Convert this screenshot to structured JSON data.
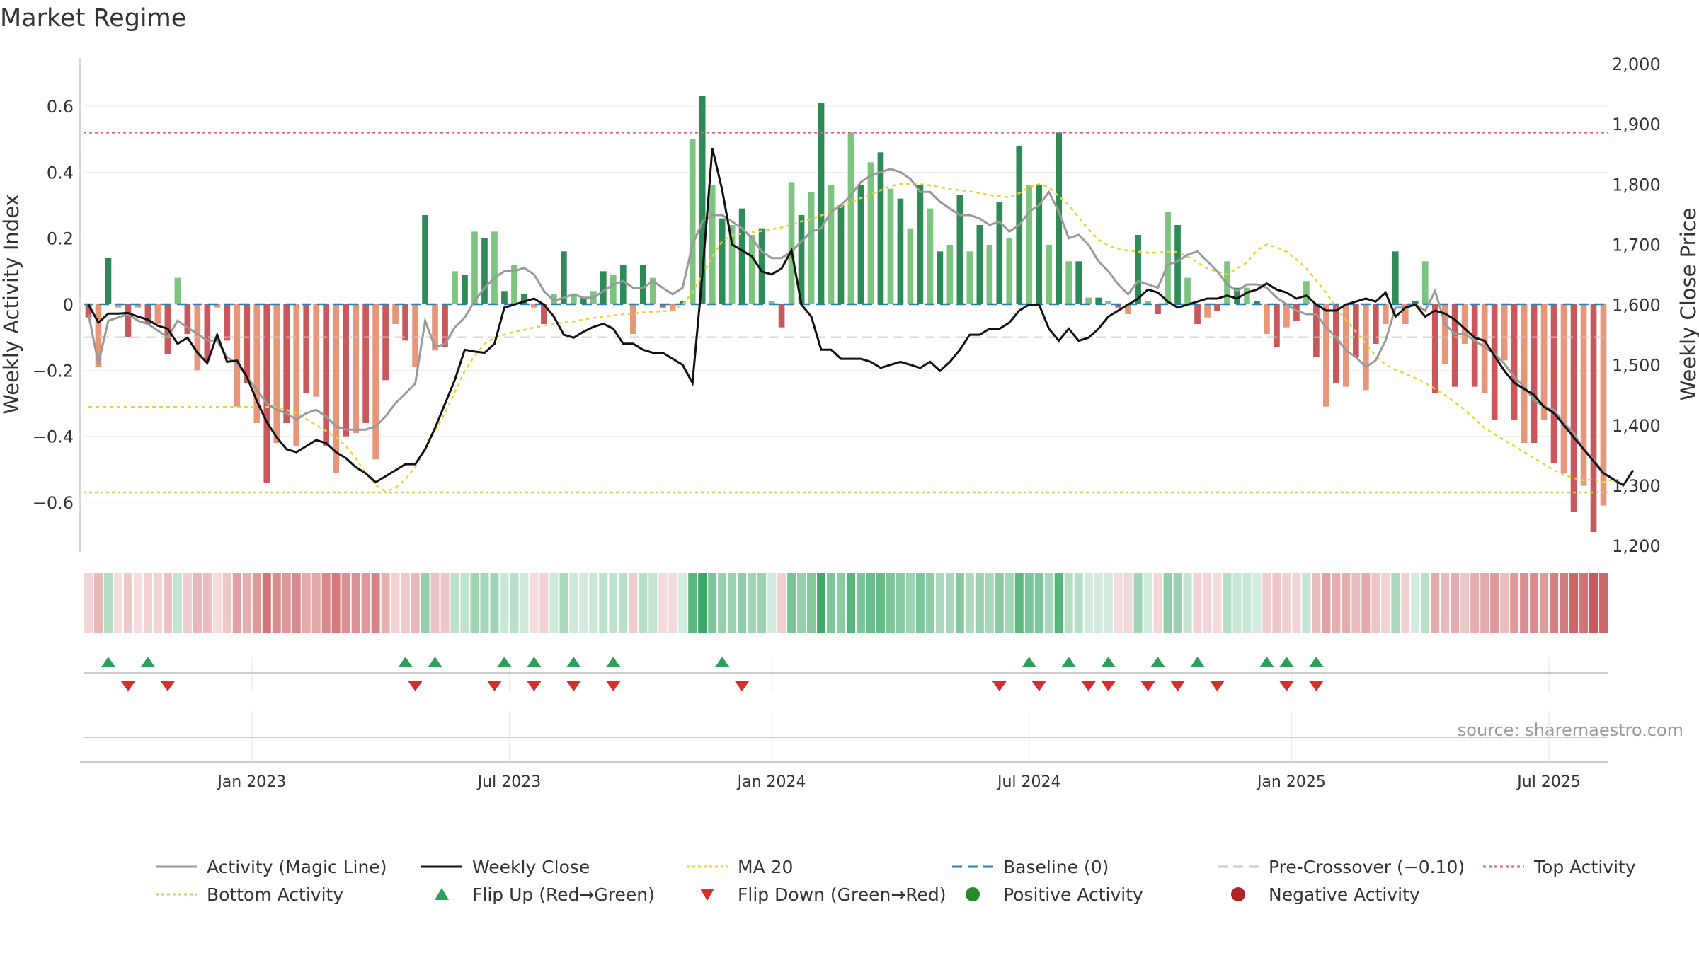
{
  "chart_data": {
    "type": "bar",
    "title": "Market Regime",
    "source": "source: sharemaestro.com",
    "ylabel_left": "Weekly Activity Index",
    "ylabel_right": "Weekly Close Price",
    "y_left_range": [
      -0.75,
      0.75
    ],
    "y_right_range": [
      1200,
      2000
    ],
    "y_left_ticks": [
      "0.6",
      "0.4",
      "0.2",
      "0",
      "−0.2",
      "−0.4",
      "−0.6"
    ],
    "y_left_tick_values": [
      0.6,
      0.4,
      0.2,
      0,
      -0.2,
      -0.4,
      -0.6
    ],
    "y_right_ticks": [
      "2,000",
      "1,900",
      "1,800",
      "1,700",
      "1,600",
      "1,500",
      "1,400",
      "1,300",
      "1,200"
    ],
    "y_right_tick_values": [
      2000,
      1900,
      1800,
      1700,
      1600,
      1500,
      1400,
      1300,
      1200
    ],
    "x_ticks": [
      "Jan 2023",
      "Jul 2023",
      "Jan 2024",
      "Jul 2024",
      "Jan 2025",
      "Jul 2025"
    ],
    "x_tick_weeks": [
      16.5,
      42.5,
      69,
      95,
      121.5,
      147.5
    ],
    "reference_lines": {
      "baseline": 0,
      "pre_crossover": -0.1,
      "top_activity": 0.52,
      "bottom_activity": -0.57
    },
    "colors": {
      "strong_green": "#2e8b57",
      "light_green": "#7cc47f",
      "strong_red": "#c9585c",
      "light_red": "#e8967a",
      "magic_line": "#999999",
      "close": "#111111",
      "ma20": "#e8d33a",
      "baseline": "#2f7fb0",
      "pre_crossover": "#c8c8c8",
      "top": "#e0607e",
      "bottom": "#b5d96a",
      "flip_up": "#2ca05a",
      "flip_down": "#d62d2d"
    },
    "activity": [
      -0.04,
      -0.19,
      0.14,
      -0.01,
      -0.1,
      -0.01,
      -0.06,
      -0.06,
      -0.15,
      0.08,
      -0.09,
      -0.2,
      -0.17,
      -0.01,
      -0.11,
      -0.31,
      -0.24,
      -0.36,
      -0.54,
      -0.42,
      -0.36,
      -0.43,
      -0.27,
      -0.28,
      -0.43,
      -0.51,
      -0.4,
      -0.39,
      -0.36,
      -0.47,
      -0.23,
      -0.06,
      -0.11,
      -0.19,
      0.27,
      -0.14,
      -0.13,
      0.1,
      0.09,
      0.22,
      0.2,
      0.22,
      0.04,
      0.12,
      0.03,
      -0.01,
      -0.06,
      0.03,
      0.16,
      0.03,
      0.02,
      0.04,
      0.1,
      0.09,
      0.12,
      -0.09,
      0.12,
      0.08,
      -0.01,
      -0.02,
      0.01,
      0.5,
      0.63,
      0.36,
      0.26,
      0.24,
      0.29,
      0.21,
      0.23,
      0.01,
      -0.07,
      0.37,
      0.27,
      0.34,
      0.61,
      0.36,
      0.3,
      0.52,
      0.36,
      0.43,
      0.46,
      0.35,
      0.32,
      0.23,
      0.36,
      0.29,
      0.16,
      0.18,
      0.33,
      0.16,
      0.24,
      0.18,
      0.31,
      0.2,
      0.48,
      0.36,
      0.36,
      0.18,
      0.52,
      0.13,
      0.13,
      0.02,
      0.02,
      0.01,
      -0.01,
      -0.03,
      0.21,
      0.01,
      -0.03,
      0.28,
      0.24,
      0.08,
      -0.06,
      -0.04,
      -0.02,
      0.13,
      0.05,
      0.05,
      0.01,
      -0.09,
      -0.13,
      -0.07,
      -0.05,
      0.07,
      -0.16,
      -0.31,
      -0.24,
      -0.25,
      -0.16,
      -0.26,
      -0.12,
      -0.06,
      0.16,
      -0.06,
      0.01,
      0.13,
      -0.27,
      -0.18,
      -0.25,
      -0.12,
      -0.25,
      -0.27,
      -0.35,
      -0.17,
      -0.35,
      -0.42,
      -0.42,
      -0.35,
      -0.48,
      -0.51,
      -0.63,
      -0.55,
      -0.69,
      -0.61
    ],
    "magic_line": [
      -0.03,
      -0.18,
      -0.05,
      -0.04,
      -0.03,
      -0.05,
      -0.06,
      -0.08,
      -0.1,
      -0.05,
      -0.07,
      -0.09,
      -0.11,
      -0.11,
      -0.16,
      -0.18,
      -0.22,
      -0.26,
      -0.3,
      -0.32,
      -0.33,
      -0.35,
      -0.33,
      -0.32,
      -0.34,
      -0.37,
      -0.38,
      -0.38,
      -0.38,
      -0.37,
      -0.34,
      -0.3,
      -0.27,
      -0.24,
      -0.05,
      -0.13,
      -0.12,
      -0.07,
      -0.04,
      0.01,
      0.05,
      0.08,
      0.1,
      0.1,
      0.11,
      0.09,
      0.04,
      0.01,
      0.02,
      0.03,
      0.02,
      0.02,
      0.04,
      0.06,
      0.07,
      0.05,
      0.05,
      0.07,
      0.05,
      0.03,
      0.05,
      0.18,
      0.25,
      0.27,
      0.27,
      0.25,
      0.23,
      0.2,
      0.16,
      0.14,
      0.14,
      0.16,
      0.19,
      0.22,
      0.23,
      0.28,
      0.3,
      0.33,
      0.37,
      0.39,
      0.4,
      0.41,
      0.4,
      0.38,
      0.34,
      0.34,
      0.31,
      0.29,
      0.27,
      0.27,
      0.26,
      0.24,
      0.25,
      0.22,
      0.24,
      0.28,
      0.3,
      0.34,
      0.28,
      0.2,
      0.21,
      0.18,
      0.13,
      0.1,
      0.06,
      0.03,
      0.07,
      0.06,
      0.05,
      0.12,
      0.13,
      0.15,
      0.16,
      0.13,
      0.1,
      0.06,
      0.04,
      0.06,
      0.06,
      0.05,
      0.02,
      0.0,
      -0.02,
      -0.03,
      -0.03,
      -0.07,
      -0.1,
      -0.14,
      -0.16,
      -0.19,
      -0.17,
      -0.11,
      -0.01,
      -0.01,
      0.0,
      -0.02,
      0.04,
      -0.06,
      -0.09,
      -0.09,
      -0.11,
      -0.13,
      -0.15,
      -0.18,
      -0.22,
      -0.25,
      -0.29,
      -0.31,
      -0.32,
      -0.36,
      -0.39,
      -0.44,
      -0.47,
      -0.51,
      -0.53
    ],
    "close": [
      1600,
      1570,
      1585,
      1585,
      1586,
      1580,
      1575,
      1565,
      1560,
      1535,
      1545,
      1520,
      1503,
      1550,
      1505,
      1507,
      1480,
      1440,
      1405,
      1380,
      1360,
      1355,
      1365,
      1375,
      1370,
      1355,
      1345,
      1330,
      1320,
      1305,
      1315,
      1325,
      1335,
      1335,
      1360,
      1395,
      1435,
      1475,
      1525,
      1522,
      1520,
      1535,
      1595,
      1600,
      1605,
      1610,
      1600,
      1580,
      1550,
      1545,
      1555,
      1563,
      1568,
      1560,
      1535,
      1535,
      1525,
      1520,
      1520,
      1510,
      1500,
      1470,
      1650,
      1860,
      1790,
      1700,
      1690,
      1680,
      1655,
      1650,
      1660,
      1690,
      1600,
      1580,
      1525,
      1525,
      1510,
      1510,
      1510,
      1505,
      1495,
      1500,
      1505,
      1500,
      1495,
      1505,
      1490,
      1505,
      1525,
      1550,
      1550,
      1560,
      1560,
      1570,
      1590,
      1600,
      1600,
      1560,
      1540,
      1560,
      1540,
      1545,
      1560,
      1580,
      1590,
      1600,
      1610,
      1625,
      1620,
      1605,
      1595,
      1600,
      1605,
      1610,
      1610,
      1615,
      1610,
      1620,
      1625,
      1635,
      1625,
      1620,
      1610,
      1615,
      1600,
      1590,
      1590,
      1600,
      1605,
      1610,
      1605,
      1620,
      1580,
      1595,
      1600,
      1580,
      1590,
      1585,
      1575,
      1560,
      1545,
      1540,
      1515,
      1490,
      1470,
      1460,
      1450,
      1430,
      1420,
      1400,
      1380,
      1360,
      1340,
      1320,
      1310,
      1300,
      1325
    ],
    "ma20": [
      1430,
      1430,
      1430,
      1430,
      1430,
      1430,
      1430,
      1430,
      1430,
      1430,
      1430,
      1430,
      1430,
      1430,
      1430,
      1430,
      1430,
      1430,
      1430,
      1430,
      1425,
      1420,
      1410,
      1400,
      1390,
      1380,
      1365,
      1345,
      1320,
      1300,
      1290,
      1295,
      1310,
      1330,
      1360,
      1390,
      1420,
      1455,
      1490,
      1515,
      1535,
      1545,
      1550,
      1555,
      1558,
      1562,
      1565,
      1568,
      1570,
      1572,
      1575,
      1578,
      1580,
      1582,
      1584,
      1585,
      1587,
      1588,
      1589,
      1590,
      1600,
      1620,
      1650,
      1680,
      1705,
      1715,
      1718,
      1720,
      1722,
      1725,
      1728,
      1733,
      1738,
      1742,
      1748,
      1755,
      1762,
      1770,
      1777,
      1783,
      1790,
      1797,
      1800,
      1800,
      1800,
      1798,
      1795,
      1792,
      1790,
      1788,
      1785,
      1782,
      1780,
      1778,
      1785,
      1795,
      1800,
      1795,
      1780,
      1765,
      1745,
      1725,
      1708,
      1698,
      1692,
      1690,
      1688,
      1686,
      1686,
      1688,
      1687,
      1680,
      1670,
      1660,
      1655,
      1650,
      1660,
      1670,
      1690,
      1700,
      1695,
      1688,
      1675,
      1660,
      1640,
      1620,
      1595,
      1575,
      1555,
      1535,
      1515,
      1500,
      1492,
      1485,
      1478,
      1470,
      1460,
      1450,
      1438,
      1425,
      1410,
      1395,
      1385,
      1375,
      1365,
      1355,
      1345,
      1335,
      1325,
      1318,
      1312,
      1308,
      1310,
      1305,
      1310
    ],
    "magic_line_note": "",
    "close_note": "",
    "flip_up_weeks": [
      2,
      6,
      32,
      35,
      42,
      45,
      49,
      53,
      64,
      95,
      99,
      103,
      108,
      112,
      119,
      121,
      124
    ],
    "flip_down_weeks": [
      4,
      8,
      33,
      41,
      45,
      49,
      53,
      66,
      92,
      96,
      101,
      103,
      107,
      110,
      114,
      121,
      124
    ],
    "legend": [
      {
        "label": "Activity (Magic Line)",
        "kind": "line",
        "color": "#999999",
        "dash": ""
      },
      {
        "label": "Weekly Close",
        "kind": "line",
        "color": "#111111",
        "dash": ""
      },
      {
        "label": "MA 20",
        "kind": "line",
        "color": "#e8d33a",
        "dash": "4,4"
      },
      {
        "label": "Baseline (0)",
        "kind": "line",
        "color": "#2f7fb0",
        "dash": "14,8"
      },
      {
        "label": "Pre-Crossover (−0.10)",
        "kind": "line",
        "color": "#c8c8c8",
        "dash": "14,8"
      },
      {
        "label": "Top Activity",
        "kind": "line",
        "color": "#e0607e",
        "dash": "4,4"
      },
      {
        "label": "Bottom Activity",
        "kind": "line",
        "color": "#b5d96a",
        "dash": "4,4"
      },
      {
        "label": "Flip Up (Red→Green)",
        "kind": "tri-up",
        "color": "#2ca05a",
        "dash": ""
      },
      {
        "label": "Flip Down (Green→Red)",
        "kind": "tri-down",
        "color": "#d62d2d",
        "dash": ""
      },
      {
        "label": "Positive Activity",
        "kind": "dot",
        "color": "#2a8a2a",
        "dash": ""
      },
      {
        "label": "Negative Activity",
        "kind": "dot",
        "color": "#b02428",
        "dash": ""
      }
    ]
  }
}
